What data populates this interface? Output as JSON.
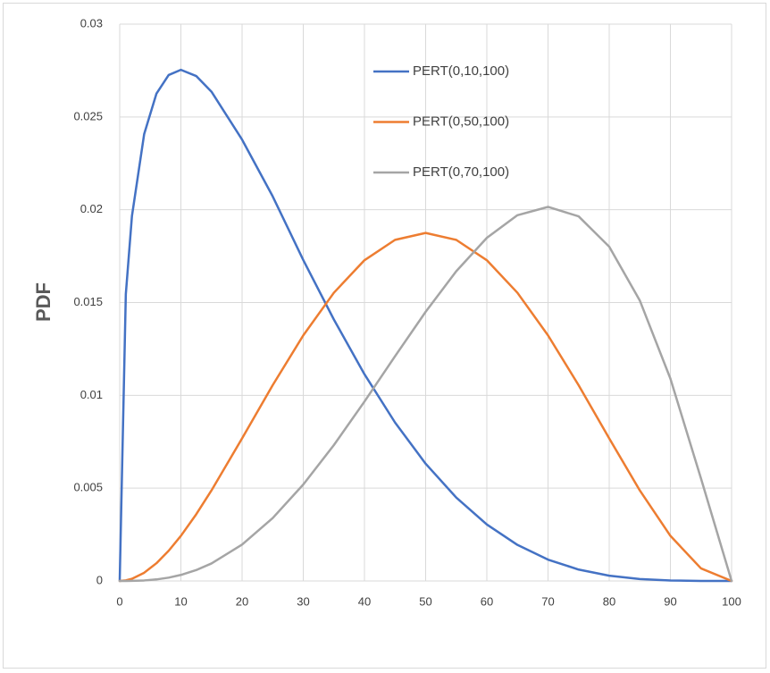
{
  "chart_data": {
    "type": "line",
    "y_label": "PDF",
    "x": [
      0,
      1,
      2,
      4,
      6,
      8,
      10,
      12.5,
      15,
      20,
      25,
      30,
      35,
      40,
      45,
      50,
      55,
      60,
      65,
      70,
      75,
      80,
      85,
      90,
      95,
      100
    ],
    "series": [
      {
        "name": "PERT(0,10,100)",
        "color": "#4472c4",
        "values": [
          0,
          0.01545,
          0.019654,
          0.024079,
          0.026251,
          0.027259,
          0.027537,
          0.027204,
          0.026361,
          0.023777,
          0.020723,
          0.017292,
          0.014085,
          0.011137,
          0.008535,
          0.006317,
          0.004493,
          0.003044,
          0.001943,
          0.001149,
          0.000613,
          0.000282,
          0.000102,
          2.43e-05,
          2e-06,
          0
        ]
      },
      {
        "name": "PERT(0,50,100)",
        "color": "#ed7d31",
        "values": [
          0,
          2.94e-05,
          0.000115,
          0.000442,
          0.000954,
          0.001625,
          0.00243,
          0.003589,
          0.004877,
          0.00768,
          0.010547,
          0.01323,
          0.015527,
          0.01728,
          0.018377,
          0.01875,
          0.018377,
          0.01728,
          0.015527,
          0.01323,
          0.010547,
          0.00768,
          0.004877,
          0.00243,
          0.000677,
          0
        ]
      },
      {
        "name": "PERT(0,70,100)",
        "color": "#a5a5a5",
        "values": [
          0,
          6e-07,
          4e-06,
          2.69e-05,
          8.18e-05,
          0.000178,
          0.000324,
          0.000585,
          0.000941,
          0.001959,
          0.003387,
          0.005196,
          0.00732,
          0.009663,
          0.012106,
          0.014501,
          0.016687,
          0.018486,
          0.019706,
          0.020153,
          0.019644,
          0.018007,
          0.01511,
          0.0109,
          0.00552,
          0
        ]
      }
    ],
    "xlim": [
      0,
      100
    ],
    "xticks": [
      0,
      10,
      20,
      30,
      40,
      50,
      60,
      70,
      80,
      90,
      100
    ],
    "ylim": [
      0,
      0.03
    ],
    "yticks": [
      0,
      0.005,
      0.01,
      0.015,
      0.02,
      0.025,
      0.03
    ],
    "grid": true,
    "legend": "top"
  }
}
